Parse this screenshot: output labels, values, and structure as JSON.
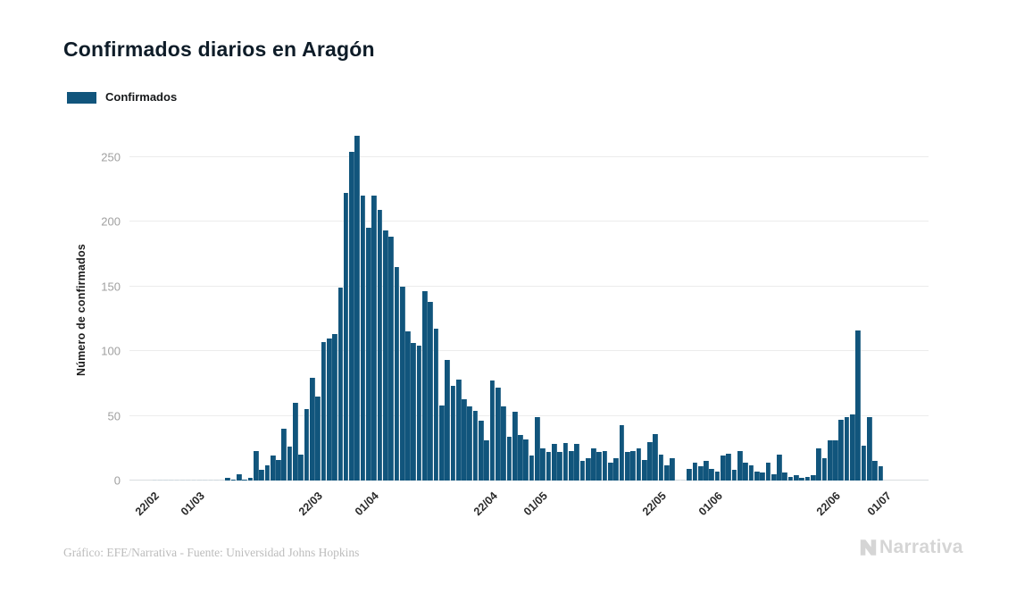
{
  "header": {
    "title": "Confirmados diarios en Aragón"
  },
  "legend": {
    "label": "Confirmados",
    "swatch_color": "#11557c"
  },
  "colors": {
    "bar": "#11557c",
    "zero_bar": "#ccd6dc",
    "gridline": "#ececec",
    "baseline": "#d9dde0",
    "ytick_text": "#a0a0a0",
    "xtick_text": "#2a2a2a",
    "title_text": "#0e1c28",
    "credit_text": "#bcbcbc",
    "brand_gray": "#d5d5d5"
  },
  "footer": {
    "credit": "Gráfico: EFE/Narrativa - Fuente: Universidad Johns Hopkins",
    "brand": "Narrativa"
  },
  "chart_data": {
    "type": "bar",
    "title": "Confirmados diarios en Aragón",
    "xlabel": "",
    "ylabel": "Número de confirmados",
    "legend": [
      "Confirmados"
    ],
    "legend_position": "top-left",
    "grid": "horizontal-only",
    "bar_color": "#11557c",
    "yticks": [
      0,
      50,
      100,
      150,
      200,
      250
    ],
    "ylim": [
      0,
      268
    ],
    "x_domain": [
      "18/02",
      "08/07"
    ],
    "xtick_labels": [
      "22/02",
      "01/03",
      "22/03",
      "01/04",
      "22/04",
      "01/05",
      "22/05",
      "01/06",
      "22/06",
      "01/07"
    ],
    "x": [
      "22/02",
      "23/02",
      "24/02",
      "25/02",
      "26/02",
      "27/02",
      "28/02",
      "29/02",
      "01/03",
      "02/03",
      "03/03",
      "04/03",
      "05/03",
      "06/03",
      "07/03",
      "08/03",
      "09/03",
      "10/03",
      "11/03",
      "12/03",
      "13/03",
      "14/03",
      "15/03",
      "16/03",
      "17/03",
      "18/03",
      "19/03",
      "20/03",
      "21/03",
      "22/03",
      "23/03",
      "24/03",
      "25/03",
      "26/03",
      "27/03",
      "28/03",
      "29/03",
      "30/03",
      "31/03",
      "01/04",
      "02/04",
      "03/04",
      "04/04",
      "05/04",
      "06/04",
      "07/04",
      "08/04",
      "09/04",
      "10/04",
      "11/04",
      "12/04",
      "13/04",
      "14/04",
      "15/04",
      "16/04",
      "17/04",
      "18/04",
      "19/04",
      "20/04",
      "21/04",
      "22/04",
      "23/04",
      "24/04",
      "25/04",
      "26/04",
      "27/04",
      "28/04",
      "29/04",
      "30/04",
      "01/05",
      "02/05",
      "03/05",
      "04/05",
      "05/05",
      "06/05",
      "07/05",
      "08/05",
      "09/05",
      "10/05",
      "11/05",
      "12/05",
      "13/05",
      "14/05",
      "15/05",
      "16/05",
      "17/05",
      "18/05",
      "19/05",
      "20/05",
      "21/05",
      "22/05",
      "23/05",
      "24/05",
      "25/05",
      "26/05",
      "27/05",
      "28/05",
      "29/05",
      "30/05",
      "31/05",
      "01/06",
      "02/06",
      "03/06",
      "04/06",
      "05/06",
      "06/06",
      "07/06",
      "08/06",
      "09/06",
      "10/06",
      "11/06",
      "12/06",
      "13/06",
      "14/06",
      "15/06",
      "16/06",
      "17/06",
      "18/06",
      "19/06",
      "20/06",
      "21/06",
      "22/06",
      "23/06",
      "24/06",
      "25/06",
      "26/06",
      "27/06",
      "28/06",
      "29/06",
      "30/06"
    ],
    "values": [
      0,
      0,
      0,
      0,
      0,
      0,
      0,
      0,
      0,
      0,
      0,
      0,
      0,
      2,
      1,
      5,
      1,
      2,
      23,
      8,
      12,
      19,
      16,
      40,
      26,
      60,
      20,
      55,
      79,
      65,
      107,
      110,
      113,
      149,
      222,
      254,
      266,
      220,
      195,
      220,
      209,
      193,
      188,
      165,
      150,
      115,
      106,
      104,
      146,
      138,
      117,
      58,
      93,
      73,
      78,
      63,
      57,
      54,
      46,
      31,
      77,
      72,
      57,
      34,
      53,
      35,
      32,
      19,
      49,
      25,
      22,
      28,
      22,
      29,
      23,
      28,
      15,
      17,
      25,
      22,
      23,
      14,
      17,
      43,
      22,
      23,
      25,
      16,
      30,
      36,
      20,
      12,
      17,
      0,
      0,
      9,
      14,
      11,
      15,
      9,
      7,
      19,
      21,
      8,
      23,
      14,
      12,
      7,
      6,
      14,
      5,
      20,
      6,
      3,
      4,
      2,
      3,
      4,
      25,
      17,
      31,
      31,
      47,
      49,
      51,
      116,
      27,
      49,
      15,
      11
    ]
  }
}
